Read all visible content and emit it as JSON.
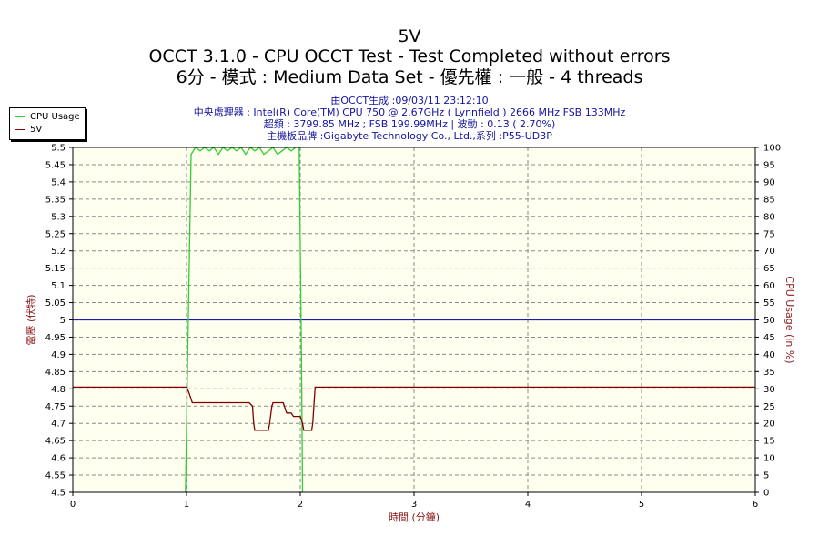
{
  "header": {
    "title": "5V",
    "subtitle_1": "OCCT 3.1.0 - CPU OCCT Test - Test Completed without errors",
    "subtitle_2": "6分 - 模式 : Medium Data Set - 優先權 : 一般 - 4 threads",
    "info_1": "由OCCT生成 :09/03/11 23:12:10",
    "info_2": "中央處理器 : Intel(R) Core(TM) CPU 750 @ 2.67GHz ( Lynnfield ) 2666 MHz FSB 133MHz",
    "info_3": "超頻 : 3799.85 MHz ; FSB 199.99MHz | 波動 : 0.13 ( 2.70%)",
    "info_4": "主機板品牌 :Gigabyte Technology Co., Ltd.,系列 :P55-UD3P"
  },
  "colors": {
    "title": "#1414c8",
    "plot_background": "#fffff0",
    "grid": "#8a8a8a",
    "cpu_usage": "#32cd32",
    "voltage": "#800000",
    "nominal_line": "#1a1ab4",
    "axis_label": "#8b1a1a"
  },
  "chart_data": {
    "type": "line",
    "title": "5V",
    "xlabel": "時間 (分鐘)",
    "ylabel_left": "電壓 (伏特)",
    "ylabel_right": "CPU Usage (in %)",
    "xlim": [
      0,
      6
    ],
    "ylim_left": [
      4.5,
      5.5
    ],
    "ylim_right": [
      0,
      100
    ],
    "x_ticks": [
      "0",
      "1",
      "2",
      "3",
      "4",
      "5",
      "6"
    ],
    "y_ticks_left": [
      "4.5",
      "4.55",
      "4.6",
      "4.65",
      "4.7",
      "4.75",
      "4.8",
      "4.85",
      "4.9",
      "4.95",
      "5",
      "5.05",
      "5.1",
      "5.15",
      "5.2",
      "5.25",
      "5.3",
      "5.35",
      "5.4",
      "5.45",
      "5.5"
    ],
    "y_ticks_right": [
      "0",
      "5",
      "10",
      "15",
      "20",
      "25",
      "30",
      "35",
      "40",
      "45",
      "50",
      "55",
      "60",
      "65",
      "70",
      "75",
      "80",
      "85",
      "90",
      "95",
      "100"
    ],
    "grid": true,
    "legend_position": "top-left",
    "nominal_voltage": 5.0,
    "series": [
      {
        "name": "CPU Usage",
        "axis": "right",
        "x": [
          0.99,
          1.01,
          1.04,
          1.08,
          1.12,
          1.16,
          1.2,
          1.24,
          1.28,
          1.32,
          1.36,
          1.4,
          1.44,
          1.48,
          1.52,
          1.56,
          1.6,
          1.64,
          1.68,
          1.72,
          1.76,
          1.8,
          1.84,
          1.88,
          1.92,
          1.96,
          1.99,
          2.01,
          2.02
        ],
        "values": [
          0,
          40,
          98,
          100,
          99,
          100,
          99,
          100,
          98,
          100,
          99,
          100,
          99,
          100,
          98,
          100,
          99,
          100,
          98,
          99,
          100,
          98,
          99,
          100,
          99,
          100,
          100,
          40,
          0
        ]
      },
      {
        "name": "5V",
        "axis": "left",
        "x": [
          0.0,
          1.0,
          1.02,
          1.04,
          1.05,
          1.55,
          1.58,
          1.59,
          1.6,
          1.72,
          1.73,
          1.75,
          1.76,
          1.85,
          1.86,
          1.88,
          1.92,
          1.94,
          1.95,
          2.0,
          2.02,
          2.03,
          2.1,
          2.11,
          2.13,
          6.0
        ],
        "values": [
          4.805,
          4.805,
          4.79,
          4.77,
          4.76,
          4.76,
          4.75,
          4.7,
          4.68,
          4.68,
          4.7,
          4.75,
          4.76,
          4.76,
          4.75,
          4.73,
          4.73,
          4.72,
          4.72,
          4.72,
          4.7,
          4.68,
          4.68,
          4.7,
          4.805,
          4.805
        ]
      }
    ]
  }
}
